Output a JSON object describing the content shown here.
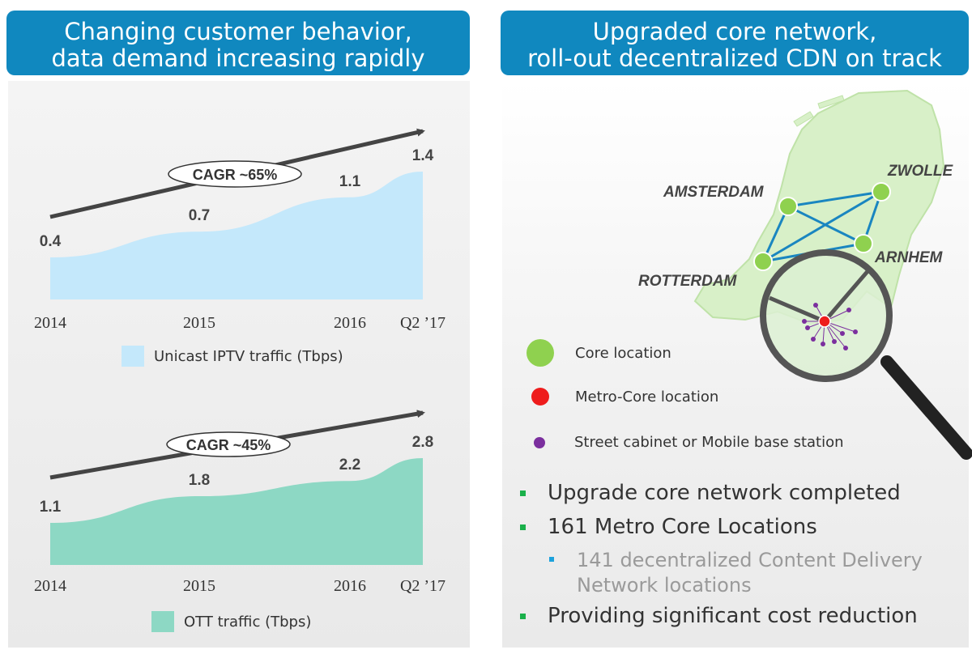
{
  "left_header": {
    "line1": "Changing customer behavior,",
    "line2": "data demand increasing rapidly"
  },
  "right_header": {
    "line1": "Upgraded core network,",
    "line2": "roll-out decentralized CDN on track"
  },
  "chart_data": [
    {
      "type": "area",
      "categories": [
        "2014",
        "2015",
        "2016",
        "Q2 ’17"
      ],
      "values": [
        0.4,
        0.7,
        1.1,
        1.4
      ],
      "value_labels": [
        "0.4",
        "0.7",
        "1.1",
        "1.4"
      ],
      "legend": "Unicast IPTV traffic (Tbps)",
      "annotation": "CAGR ~65%",
      "color": "#c4e8fb"
    },
    {
      "type": "area",
      "categories": [
        "2014",
        "2015",
        "2016",
        "Q2 ’17"
      ],
      "values": [
        1.1,
        1.8,
        2.2,
        2.8
      ],
      "value_labels": [
        "1.1",
        "1.8",
        "2.2",
        "2.8"
      ],
      "legend": "OTT traffic (Tbps)",
      "annotation": "CAGR ~45%",
      "color": "#8dd8c4"
    }
  ],
  "map": {
    "cities": [
      "AMSTERDAM",
      "ZWOLLE",
      "ROTTERDAM",
      "ARNHEM"
    ],
    "colors": {
      "land": "#d8f0c8",
      "land_stroke": "#bfe2a8",
      "core": "#8fd14f",
      "link": "#1a86c0",
      "metro": "#ee1c1c",
      "street": "#7b2f9e"
    }
  },
  "legend": {
    "core": "Core location",
    "metro": "Metro-Core location",
    "street": "Street cabinet or Mobile base station"
  },
  "bullets": {
    "b1": "Upgrade core network completed",
    "b2": "161 Metro Core Locations",
    "b3_line1": "141 decentralized Content Delivery",
    "b3_line2": "Network locations",
    "b4": "Providing significant cost reduction"
  }
}
